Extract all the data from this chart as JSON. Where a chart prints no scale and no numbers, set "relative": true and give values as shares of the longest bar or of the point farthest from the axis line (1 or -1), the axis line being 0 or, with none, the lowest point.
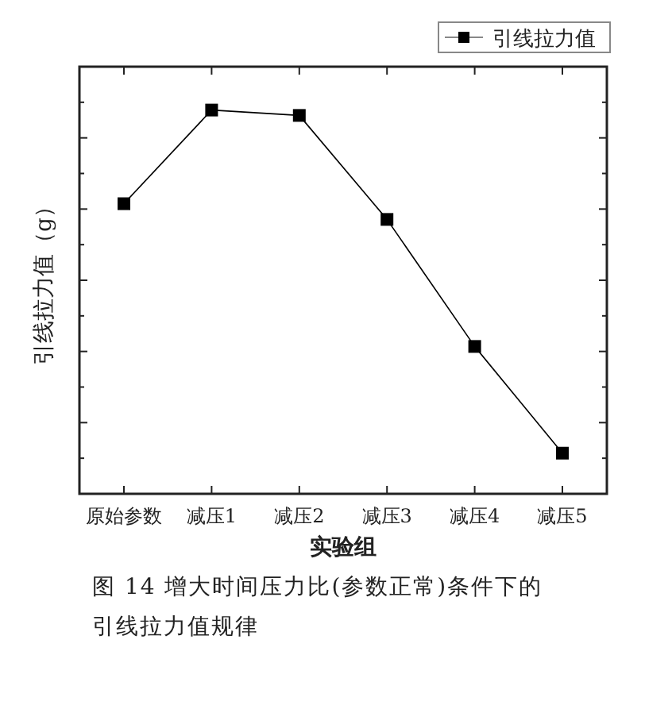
{
  "chart_data": {
    "type": "line",
    "relative": true,
    "xlabel": "实验组",
    "ylabel": "引线拉力值（g）",
    "categories": [
      "原始参数",
      "减压1",
      "减压2",
      "减压3",
      "减压4",
      "减压5"
    ],
    "series": [
      {
        "name": "引线拉力值",
        "color": "#000000",
        "values": [
          0.756,
          1,
          0.986,
          0.715,
          0.384,
          0.106
        ]
      }
    ],
    "marker": "square",
    "line_style": "solid",
    "grid": false,
    "legend": "top right",
    "annotations": [
      "图 14  增大时间压力比(参数正常)条件下的引线拉力值规律"
    ]
  }
}
